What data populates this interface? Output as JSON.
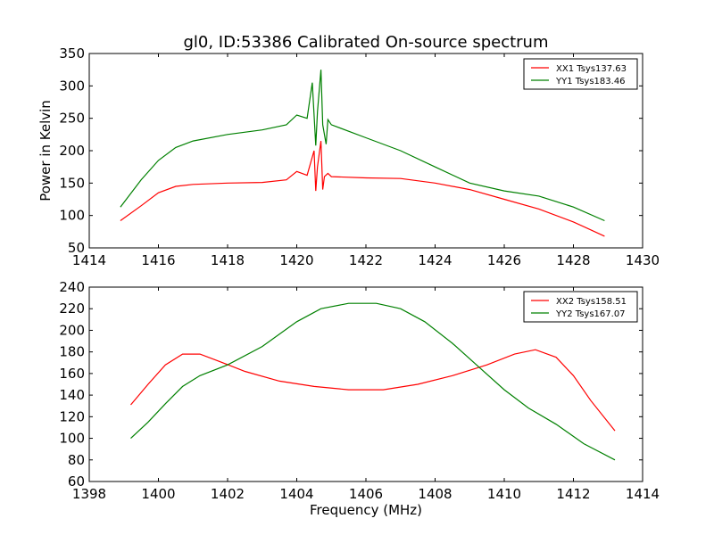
{
  "chart_data": [
    {
      "type": "line",
      "title": "gl0, ID:53386 Calibrated On-source spectrum",
      "xlabel": "",
      "ylabel": "Power in Kelvin",
      "xlim": [
        1414,
        1430
      ],
      "ylim": [
        50,
        350
      ],
      "xticks": [
        "1414",
        "1416",
        "1418",
        "1420",
        "1422",
        "1424",
        "1426",
        "1428",
        "1430"
      ],
      "yticks": [
        "50",
        "100",
        "150",
        "200",
        "250",
        "300",
        "350"
      ],
      "legend_position": "top-right",
      "series": [
        {
          "name": "XX1 Tsys137.63",
          "color": "#ff0000",
          "x": [
            1414.9,
            1415.5,
            1416,
            1416.5,
            1417,
            1418,
            1419,
            1419.7,
            1420,
            1420.3,
            1420.5,
            1420.55,
            1420.6,
            1420.7,
            1420.75,
            1420.8,
            1420.9,
            1421,
            1422,
            1423,
            1424,
            1425,
            1426,
            1427,
            1428,
            1428.9
          ],
          "y": [
            92,
            115,
            135,
            145,
            148,
            150,
            151,
            155,
            168,
            162,
            200,
            138,
            175,
            215,
            140,
            160,
            165,
            160,
            158,
            157,
            150,
            140,
            125,
            110,
            90,
            68
          ]
        },
        {
          "name": "YY1 Tsys183.46",
          "color": "#008000",
          "x": [
            1414.9,
            1415.5,
            1416,
            1416.5,
            1417,
            1418,
            1419,
            1419.7,
            1420,
            1420.3,
            1420.45,
            1420.55,
            1420.6,
            1420.7,
            1420.75,
            1420.85,
            1420.9,
            1421,
            1422,
            1423,
            1424,
            1425,
            1426,
            1427,
            1428,
            1428.9
          ],
          "y": [
            113,
            155,
            185,
            205,
            215,
            225,
            232,
            240,
            255,
            250,
            305,
            208,
            260,
            325,
            240,
            210,
            248,
            240,
            220,
            200,
            175,
            150,
            138,
            130,
            113,
            92
          ]
        }
      ]
    },
    {
      "type": "line",
      "title": "",
      "xlabel": "Frequency (MHz)",
      "ylabel": "",
      "xlim": [
        1398,
        1414
      ],
      "ylim": [
        60,
        240
      ],
      "xticks": [
        "1398",
        "1400",
        "1402",
        "1404",
        "1406",
        "1408",
        "1410",
        "1412",
        "1414"
      ],
      "yticks": [
        "60",
        "80",
        "100",
        "120",
        "140",
        "160",
        "180",
        "200",
        "220",
        "240"
      ],
      "legend_position": "top-right",
      "series": [
        {
          "name": "XX2 Tsys158.51",
          "color": "#ff0000",
          "x": [
            1399.2,
            1399.7,
            1400.2,
            1400.7,
            1401.2,
            1401.7,
            1402.5,
            1403.5,
            1404.5,
            1405.5,
            1406.5,
            1407.5,
            1408.5,
            1409.5,
            1410.3,
            1410.9,
            1411.5,
            1412,
            1412.5,
            1413.2
          ],
          "y": [
            131,
            150,
            168,
            178,
            178,
            172,
            162,
            153,
            148,
            145,
            145,
            150,
            158,
            168,
            178,
            182,
            175,
            158,
            135,
            107
          ]
        },
        {
          "name": "YY2 Tsys167.07",
          "color": "#008000",
          "x": [
            1399.2,
            1399.7,
            1400.2,
            1400.7,
            1401.2,
            1402,
            1403,
            1404,
            1404.7,
            1405.5,
            1406.3,
            1407,
            1407.7,
            1408.5,
            1409.3,
            1410,
            1410.7,
            1411.5,
            1412.3,
            1413.2
          ],
          "y": [
            100,
            115,
            132,
            148,
            158,
            168,
            185,
            208,
            220,
            225,
            225,
            220,
            208,
            188,
            165,
            145,
            128,
            113,
            95,
            80
          ]
        }
      ]
    }
  ]
}
